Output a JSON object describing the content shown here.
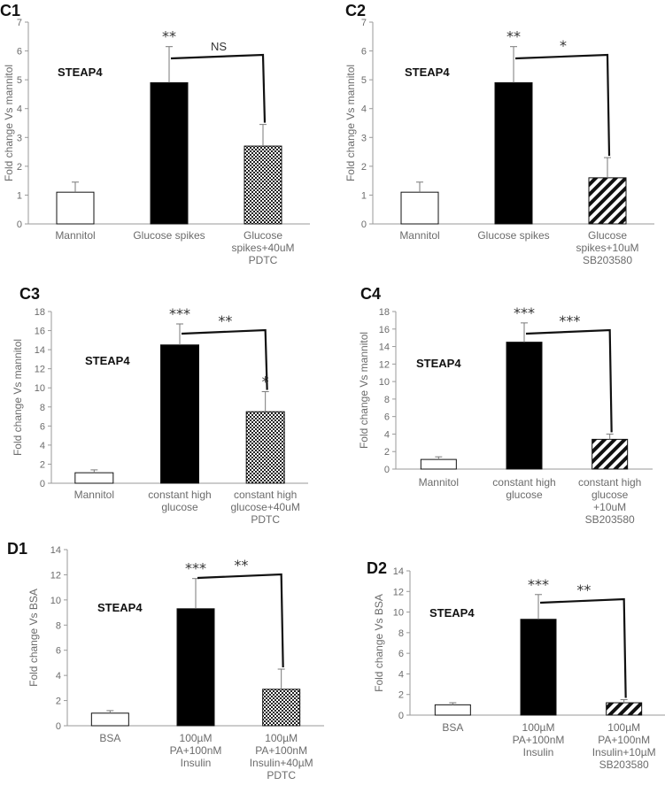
{
  "chart_data": [
    {
      "type": "bar",
      "panel": "C1",
      "annotation": "STEAP4",
      "ylabel": "Fold change Vs mannitol",
      "ylim": [
        0,
        7
      ],
      "ticks": [
        0,
        1,
        2,
        3,
        4,
        5,
        6,
        7
      ],
      "categories": [
        [
          "Mannitol"
        ],
        [
          "Glucose spikes"
        ],
        [
          "Glucose",
          "spikes+40uM",
          "PDTC"
        ]
      ],
      "values": [
        1.1,
        4.9,
        2.7
      ],
      "errors": [
        0.35,
        1.25,
        0.75
      ],
      "fills": [
        "white",
        "black",
        "checker"
      ],
      "top_marks": [
        "",
        "**",
        ""
      ],
      "bracket_label": "NS"
    },
    {
      "type": "bar",
      "panel": "C2",
      "annotation": "STEAP4",
      "ylabel": "Fold change Vs mannitol",
      "ylim": [
        0,
        7
      ],
      "ticks": [
        0,
        1,
        2,
        3,
        4,
        5,
        6,
        7
      ],
      "categories": [
        [
          "Mannitol"
        ],
        [
          "Glucose spikes"
        ],
        [
          "Glucose",
          "spikes+10uM",
          "SB203580"
        ]
      ],
      "values": [
        1.1,
        4.9,
        1.6
      ],
      "errors": [
        0.35,
        1.25,
        0.7
      ],
      "fills": [
        "white",
        "black",
        "hatch"
      ],
      "top_marks": [
        "",
        "**",
        ""
      ],
      "bracket_label": "*"
    },
    {
      "type": "bar",
      "panel": "C3",
      "annotation": "STEAP4",
      "ylabel": "Fold change Vs mannitol",
      "ylim": [
        0,
        18
      ],
      "ticks": [
        0,
        2,
        4,
        6,
        8,
        10,
        12,
        14,
        16,
        18
      ],
      "categories": [
        [
          "Mannitol"
        ],
        [
          "constant high",
          "glucose"
        ],
        [
          "constant high",
          "glucose+40uM",
          "PDTC"
        ]
      ],
      "values": [
        1.1,
        14.5,
        7.5
      ],
      "errors": [
        0.3,
        2.2,
        2.1
      ],
      "fills": [
        "white",
        "black",
        "checker"
      ],
      "top_marks": [
        "",
        "***",
        "*"
      ],
      "bracket_label": "**"
    },
    {
      "type": "bar",
      "panel": "C4",
      "annotation": "STEAP4",
      "ylabel": "Fold change Vs mannitol",
      "ylim": [
        0,
        18
      ],
      "ticks": [
        0,
        2,
        4,
        6,
        8,
        10,
        12,
        14,
        16,
        18
      ],
      "categories": [
        [
          "Mannitol"
        ],
        [
          "constant high",
          "glucose"
        ],
        [
          "constant high",
          "glucose",
          "+10uM",
          "SB203580"
        ]
      ],
      "values": [
        1.1,
        14.5,
        3.4
      ],
      "errors": [
        0.3,
        2.2,
        0.6
      ],
      "fills": [
        "white",
        "black",
        "hatch"
      ],
      "top_marks": [
        "",
        "***",
        ""
      ],
      "bracket_label": "***"
    },
    {
      "type": "bar",
      "panel": "D1",
      "annotation": "STEAP4",
      "ylabel": "Fold change Vs BSA",
      "ylim": [
        0,
        14
      ],
      "ticks": [
        0,
        2,
        4,
        6,
        8,
        10,
        12,
        14
      ],
      "categories": [
        [
          "BSA"
        ],
        [
          "100µM",
          "PA+100nM",
          "Insulin"
        ],
        [
          "100µM",
          "PA+100nM",
          "Insulin+40µM",
          "PDTC"
        ]
      ],
      "values": [
        1.0,
        9.3,
        2.9
      ],
      "errors": [
        0.2,
        2.4,
        1.6
      ],
      "fills": [
        "white",
        "black",
        "checker"
      ],
      "top_marks": [
        "",
        "***",
        ""
      ],
      "bracket_label": "**"
    },
    {
      "type": "bar",
      "panel": "D2",
      "annotation": "STEAP4",
      "ylabel": "Fold change Vs BSA",
      "ylim": [
        0,
        14
      ],
      "ticks": [
        0,
        2,
        4,
        6,
        8,
        10,
        12,
        14
      ],
      "categories": [
        [
          "BSA"
        ],
        [
          "100µM",
          "PA+100nM",
          "Insulin"
        ],
        [
          "100µM",
          "PA+100nM",
          "Insulin+10µM",
          "SB203580"
        ]
      ],
      "values": [
        1.0,
        9.3,
        1.2
      ],
      "errors": [
        0.2,
        2.4,
        0.3
      ],
      "fills": [
        "white",
        "black",
        "hatch"
      ],
      "top_marks": [
        "",
        "***",
        ""
      ],
      "bracket_label": "**"
    }
  ]
}
